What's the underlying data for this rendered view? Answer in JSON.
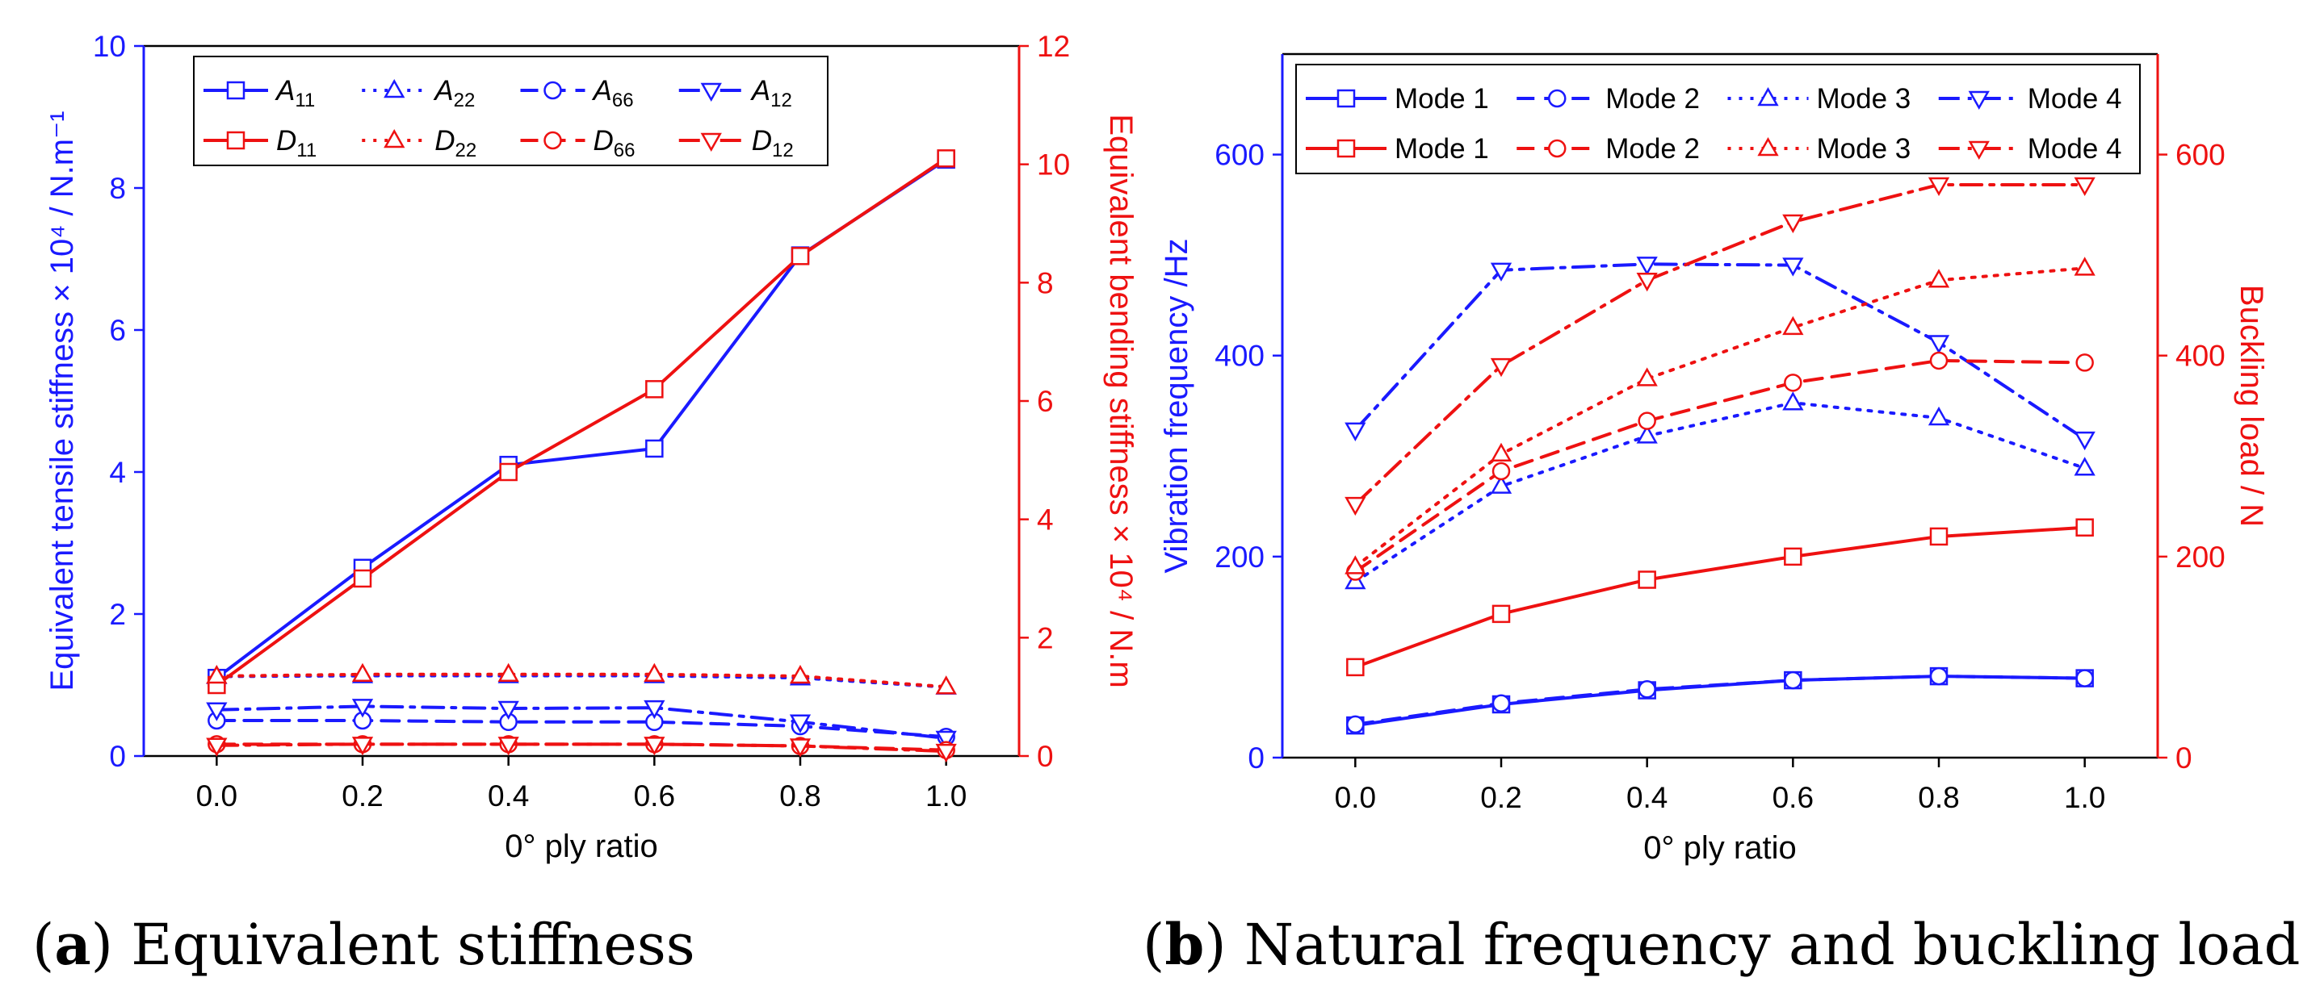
{
  "chart_data": [
    {
      "panel": "a",
      "type": "line",
      "caption_label": "a",
      "caption_text": "Equivalent stiffness",
      "xlabel": "0° ply ratio",
      "ylabel_left": "Equivalent tensile stiffness × 10⁴ / N.m⁻¹",
      "ylabel_right": "Equivalent bending stiffness × 10⁴ / N.m",
      "x": [
        0.0,
        0.2,
        0.4,
        0.6,
        0.8,
        1.0
      ],
      "x_ticks": [
        "0.0",
        "0.2",
        "0.4",
        "0.6",
        "0.8",
        "1.0"
      ],
      "xlim": [
        -0.1,
        1.1
      ],
      "ylim_left": [
        0,
        10
      ],
      "ylim_right": [
        0,
        12
      ],
      "y_ticks_left": [
        "0",
        "2",
        "4",
        "6",
        "8",
        "10"
      ],
      "y_ticks_right": [
        "0",
        "2",
        "4",
        "6",
        "8",
        "10",
        "12"
      ],
      "series": [
        {
          "name": "A11",
          "base": "A",
          "sub": "11",
          "axis": "left",
          "color": "#1a1aff",
          "dash": "solid",
          "marker": "square",
          "values": [
            1.1,
            2.65,
            4.1,
            4.33,
            7.05,
            8.4
          ]
        },
        {
          "name": "A22",
          "base": "A",
          "sub": "22",
          "axis": "left",
          "color": "#1a1aff",
          "dash": "dot",
          "marker": "triangle-up",
          "values": [
            1.12,
            1.13,
            1.13,
            1.13,
            1.1,
            0.97
          ]
        },
        {
          "name": "A66",
          "base": "A",
          "sub": "66",
          "axis": "left",
          "color": "#1a1aff",
          "dash": "dash",
          "marker": "circle",
          "values": [
            0.5,
            0.5,
            0.48,
            0.48,
            0.42,
            0.27
          ]
        },
        {
          "name": "A12",
          "base": "A",
          "sub": "12",
          "axis": "left",
          "color": "#1a1aff",
          "dash": "dashdot",
          "marker": "triangle-down",
          "values": [
            0.65,
            0.7,
            0.67,
            0.68,
            0.48,
            0.25
          ]
        },
        {
          "name": "D11",
          "base": "D",
          "sub": "11",
          "axis": "right",
          "color": "#ee1111",
          "dash": "solid",
          "marker": "square",
          "values": [
            1.2,
            3.0,
            4.8,
            6.2,
            8.45,
            10.1
          ]
        },
        {
          "name": "D22",
          "base": "D",
          "sub": "22",
          "axis": "right",
          "color": "#ee1111",
          "dash": "dot",
          "marker": "triangle-up",
          "values": [
            1.35,
            1.38,
            1.38,
            1.38,
            1.35,
            1.17
          ]
        },
        {
          "name": "D66",
          "base": "D",
          "sub": "66",
          "axis": "right",
          "color": "#ee1111",
          "dash": "dash",
          "marker": "circle",
          "values": [
            0.2,
            0.2,
            0.2,
            0.2,
            0.17,
            0.1
          ]
        },
        {
          "name": "D12",
          "base": "D",
          "sub": "12",
          "axis": "right",
          "color": "#ee1111",
          "dash": "dashdot",
          "marker": "triangle-down",
          "values": [
            0.18,
            0.2,
            0.2,
            0.2,
            0.17,
            0.08
          ]
        }
      ]
    },
    {
      "panel": "b",
      "type": "line",
      "caption_label": "b",
      "caption_text": "Natural frequency and buckling load",
      "xlabel": "0° ply ratio",
      "ylabel_left": "Vibration frequency /Hz",
      "ylabel_right": "Buckling load / N",
      "x": [
        0.0,
        0.2,
        0.4,
        0.6,
        0.8,
        1.0
      ],
      "x_ticks": [
        "0.0",
        "0.2",
        "0.4",
        "0.6",
        "0.8",
        "1.0"
      ],
      "xlim": [
        -0.1,
        1.1
      ],
      "ylim_left": [
        0,
        700
      ],
      "ylim_right": [
        0,
        700
      ],
      "y_ticks_left": [
        "0",
        "200",
        "400",
        "600"
      ],
      "y_ticks_right": [
        "0",
        "200",
        "400",
        "600"
      ],
      "series": [
        {
          "name": "Mode 1",
          "axis": "left",
          "color": "#1a1aff",
          "dash": "solid",
          "marker": "square",
          "values": [
            32,
            53,
            67,
            77,
            81,
            79
          ]
        },
        {
          "name": "Mode 2",
          "axis": "left",
          "color": "#1a1aff",
          "dash": "dash",
          "marker": "circle",
          "values": [
            33,
            54,
            68,
            77,
            81,
            79
          ]
        },
        {
          "name": "Mode 3",
          "axis": "left",
          "color": "#1a1aff",
          "dash": "dot",
          "marker": "triangle-up",
          "values": [
            175,
            270,
            320,
            353,
            338,
            288
          ]
        },
        {
          "name": "Mode 4",
          "axis": "left",
          "color": "#1a1aff",
          "dash": "dashdot",
          "marker": "triangle-down",
          "values": [
            326,
            485,
            491,
            490,
            413,
            317
          ]
        },
        {
          "name": "Mode 1",
          "axis": "right",
          "color": "#ee1111",
          "dash": "solid",
          "marker": "square",
          "values": [
            90,
            143,
            177,
            200,
            220,
            229
          ]
        },
        {
          "name": "Mode 2",
          "axis": "right",
          "color": "#ee1111",
          "dash": "dash",
          "marker": "circle",
          "values": [
            185,
            285,
            335,
            373,
            395,
            393
          ]
        },
        {
          "name": "Mode 3",
          "axis": "right",
          "color": "#ee1111",
          "dash": "dot",
          "marker": "triangle-up",
          "values": [
            190,
            302,
            377,
            428,
            475,
            487
          ]
        },
        {
          "name": "Mode 4",
          "axis": "right",
          "color": "#ee1111",
          "dash": "dashdot",
          "marker": "triangle-down",
          "values": [
            252,
            390,
            475,
            533,
            570,
            570
          ]
        }
      ]
    }
  ]
}
